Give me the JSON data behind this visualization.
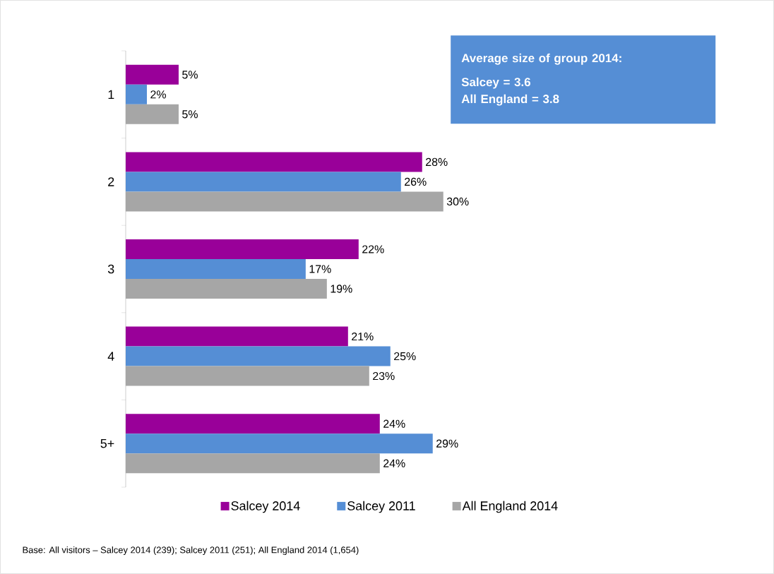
{
  "chart_data": {
    "type": "bar",
    "orientation": "horizontal",
    "categories": [
      "1",
      "2",
      "3",
      "4",
      "5+"
    ],
    "series": [
      {
        "name": "Salcey 2014",
        "color": "#990099",
        "values": [
          5,
          28,
          22,
          21,
          24
        ],
        "value_labels": [
          "5%",
          "28%",
          "22%",
          "21%",
          "24%"
        ]
      },
      {
        "name": "Salcey 2011",
        "color": "#558ed5",
        "values": [
          2,
          26,
          17,
          25,
          29
        ],
        "value_labels": [
          "2%",
          "26%",
          "17%",
          "25%",
          "29%"
        ]
      },
      {
        "name": "All England 2014",
        "color": "#a6a6a6",
        "values": [
          5,
          30,
          19,
          23,
          24
        ],
        "value_labels": [
          "5%",
          "30%",
          "19%",
          "23%",
          "24%"
        ]
      }
    ],
    "legend": "bottom",
    "annotations": [
      "Average size of group 2014:",
      "Salcey = 3.6",
      "All England = 3.8",
      "Base: All visitors – Salcey 2014 (239); Salcey 2011 (251); All England 2014 (1,654)"
    ]
  }
}
